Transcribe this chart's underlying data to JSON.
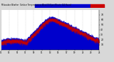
{
  "title": "Milwaukee Weather  Outdoor Temperature vs Wind Chill per Minute (24 Hours)",
  "background_color": "#d8d8d8",
  "plot_bg_color": "#ffffff",
  "bar_color": "#0000cc",
  "windchill_color": "#cc0000",
  "legend_temp_color": "#0000cc",
  "legend_wc_color": "#cc0000",
  "num_points": 1440,
  "ylim_min": 0,
  "ylim_max": 80,
  "yticks": [
    70,
    60,
    50,
    40,
    30,
    20,
    10
  ],
  "xtick_labels": [
    "01",
    "03",
    "05",
    "07",
    "09",
    "11",
    "13",
    "15",
    "17",
    "19",
    "21",
    "23",
    "25"
  ],
  "grid_color": "#aaaaaa",
  "figsize": [
    1.6,
    0.87
  ],
  "dpi": 100
}
